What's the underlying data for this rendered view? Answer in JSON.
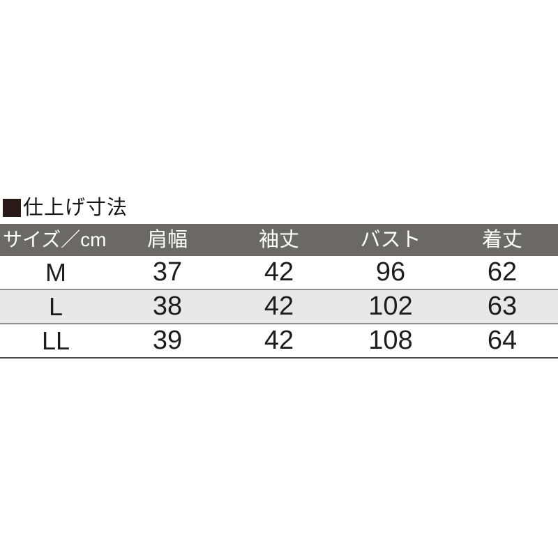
{
  "title": {
    "icon": "filled-square-icon",
    "text": "仕上げ寸法"
  },
  "colors": {
    "title_square": "#2a1b18",
    "header_bg": "#6b6868",
    "header_text": "#ffffff",
    "row_alt_bg": "#e9e8e8",
    "row_separator": "#8d8d8d",
    "table_bottom_border": "#4a4a4a",
    "cell_text": "#1d1d1d"
  },
  "table": {
    "headers": [
      "サイズ／cm",
      "肩幅",
      "袖丈",
      "バスト",
      "着丈"
    ],
    "rows": [
      {
        "size": "M",
        "values": [
          "37",
          "42",
          "96",
          "62"
        ]
      },
      {
        "size": "L",
        "values": [
          "38",
          "42",
          "102",
          "63"
        ]
      },
      {
        "size": "LL",
        "values": [
          "39",
          "42",
          "108",
          "64"
        ]
      }
    ]
  },
  "chart_data": {
    "type": "table",
    "title": "仕上げ寸法",
    "unit": "cm",
    "columns": [
      "サイズ／cm",
      "肩幅",
      "袖丈",
      "バスト",
      "着丈"
    ],
    "rows": [
      [
        "M",
        37,
        42,
        96,
        62
      ],
      [
        "L",
        38,
        42,
        102,
        63
      ],
      [
        "LL",
        39,
        42,
        108,
        64
      ]
    ]
  }
}
